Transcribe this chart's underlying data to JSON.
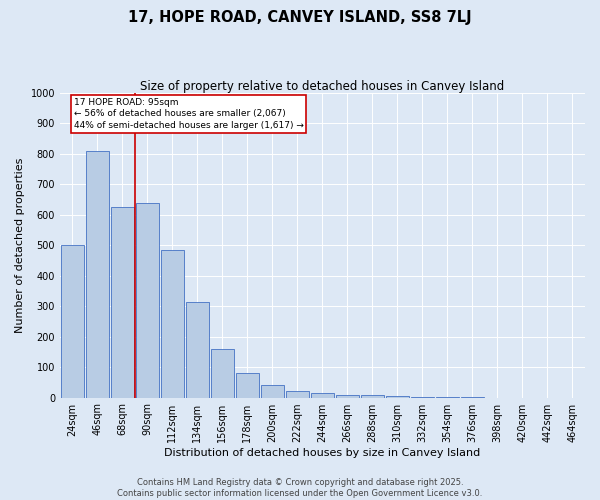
{
  "title": "17, HOPE ROAD, CANVEY ISLAND, SS8 7LJ",
  "subtitle": "Size of property relative to detached houses in Canvey Island",
  "xlabel": "Distribution of detached houses by size in Canvey Island",
  "ylabel": "Number of detached properties",
  "footer_line1": "Contains HM Land Registry data © Crown copyright and database right 2025.",
  "footer_line2": "Contains public sector information licensed under the Open Government Licence v3.0.",
  "categories": [
    "24sqm",
    "46sqm",
    "68sqm",
    "90sqm",
    "112sqm",
    "134sqm",
    "156sqm",
    "178sqm",
    "200sqm",
    "222sqm",
    "244sqm",
    "266sqm",
    "288sqm",
    "310sqm",
    "332sqm",
    "354sqm",
    "376sqm",
    "398sqm",
    "420sqm",
    "442sqm",
    "464sqm"
  ],
  "values": [
    500,
    810,
    625,
    640,
    485,
    315,
    160,
    82,
    40,
    22,
    15,
    10,
    7,
    5,
    3,
    2,
    1,
    0,
    0,
    0,
    0
  ],
  "bar_color": "#b8cce4",
  "bar_edge_color": "#4472c4",
  "ylim": [
    0,
    1000
  ],
  "yticks": [
    0,
    100,
    200,
    300,
    400,
    500,
    600,
    700,
    800,
    900,
    1000
  ],
  "property_line_index": 3,
  "property_line_color": "#cc0000",
  "annotation_text": "17 HOPE ROAD: 95sqm\n← 56% of detached houses are smaller (2,067)\n44% of semi-detached houses are larger (1,617) →",
  "annotation_box_facecolor": "#ffffff",
  "annotation_box_edgecolor": "#cc0000",
  "background_color": "#dde8f5",
  "plot_bg_color": "#dde8f5",
  "grid_color": "#ffffff",
  "title_fontsize": 10.5,
  "subtitle_fontsize": 8.5,
  "ylabel_fontsize": 8,
  "xlabel_fontsize": 8,
  "tick_fontsize": 7,
  "footer_fontsize": 6
}
